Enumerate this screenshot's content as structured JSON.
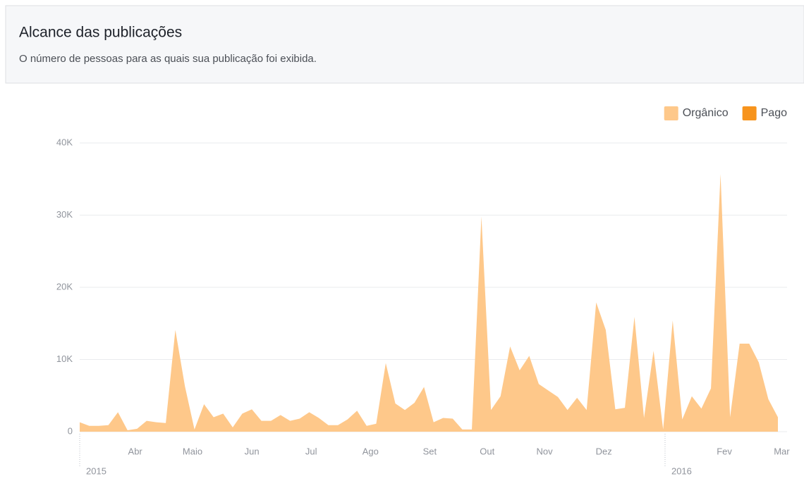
{
  "header": {
    "title": "Alcance das publicações",
    "subtitle": "O número de pessoas para as quais sua publicação foi exibida."
  },
  "chart_data": {
    "type": "area",
    "stacked": true,
    "x": [
      0,
      5,
      10,
      15,
      20,
      25,
      30,
      35,
      40,
      45,
      50,
      55,
      60,
      65,
      70,
      75,
      80,
      85,
      90,
      95,
      100,
      105,
      110,
      115,
      120,
      125,
      130,
      135,
      140,
      145,
      150,
      155,
      160,
      165,
      170,
      175,
      180,
      185,
      190,
      195,
      200,
      205,
      210,
      215,
      220,
      225,
      230,
      235,
      240,
      245,
      250,
      255,
      260,
      265,
      270,
      275,
      280,
      285,
      290,
      295,
      300,
      305,
      310,
      315,
      320,
      325,
      330,
      335,
      340,
      345,
      350,
      355,
      360,
      365
    ],
    "series": [
      {
        "name": "Orgânico",
        "color": "#fec88a",
        "values": [
          1300,
          800,
          800,
          900,
          2700,
          200,
          400,
          1500,
          1300,
          1200,
          14100,
          6300,
          300,
          3800,
          2000,
          2500,
          600,
          2500,
          3100,
          1500,
          1500,
          2300,
          1500,
          1800,
          2700,
          1900,
          900,
          900,
          1700,
          2900,
          800,
          1100,
          9500,
          3900,
          3000,
          4000,
          6200,
          1300,
          1900,
          1800,
          300,
          300,
          29800,
          3000,
          4900,
          11800,
          8500,
          10500,
          6600,
          5700,
          4800,
          3000,
          4700,
          3000,
          17900,
          14100,
          3100,
          3300,
          15900,
          1900,
          11200,
          300,
          15400,
          1700,
          4900,
          3200,
          6000,
          35700,
          2000,
          12200,
          12200,
          9600,
          4500,
          2000
        ]
      },
      {
        "name": "Pago",
        "color": "#f7941d",
        "values": [
          0,
          0,
          0,
          0,
          0,
          0,
          0,
          0,
          0,
          0,
          0,
          0,
          0,
          0,
          0,
          0,
          0,
          0,
          0,
          0,
          0,
          0,
          0,
          0,
          0,
          0,
          0,
          0,
          0,
          0,
          0,
          0,
          0,
          0,
          0,
          0,
          0,
          0,
          0,
          0,
          0,
          0,
          0,
          0,
          0,
          0,
          0,
          0,
          0,
          0,
          0,
          0,
          0,
          0,
          0,
          0,
          0,
          0,
          0,
          0,
          0,
          0,
          0,
          0,
          0,
          0,
          0,
          0,
          0,
          0,
          0,
          0,
          0,
          0
        ]
      }
    ],
    "xlim": [
      0,
      365
    ],
    "xticks": [
      {
        "value": 29,
        "label": "Abr"
      },
      {
        "value": 59,
        "label": "Maio"
      },
      {
        "value": 90,
        "label": "Jun"
      },
      {
        "value": 121,
        "label": "Jul"
      },
      {
        "value": 152,
        "label": "Ago"
      },
      {
        "value": 183,
        "label": "Set"
      },
      {
        "value": 213,
        "label": "Out"
      },
      {
        "value": 243,
        "label": "Nov"
      },
      {
        "value": 274,
        "label": "Dez"
      },
      {
        "value": 337,
        "label": "Fev"
      },
      {
        "value": 367,
        "label": "Mar"
      }
    ],
    "year_markers": [
      {
        "value": 0,
        "label": "2015"
      },
      {
        "value": 306,
        "label": "2016"
      }
    ],
    "ylim": [
      0,
      40000
    ],
    "yticks": [
      0,
      {
        "value": 10000,
        "label": "10K"
      },
      {
        "value": 20000,
        "label": "20K"
      },
      {
        "value": 30000,
        "label": "30K"
      },
      {
        "value": 40000,
        "label": "40K"
      }
    ],
    "grid": true,
    "legend": "top-right"
  }
}
